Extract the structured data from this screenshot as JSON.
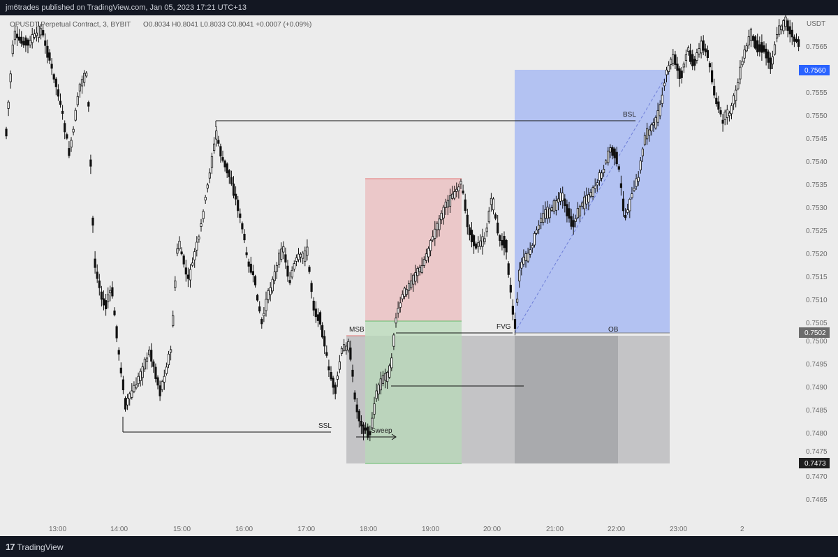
{
  "header": {
    "published_by": "jm6trades published on TradingView.com, Jan 05, 2023 17:21 UTC+13"
  },
  "symbol_info": {
    "title": "OPUSDT Perpetual Contract, 3, BYBIT",
    "ohlc_line": "O0.8034  H0.8041  L0.8033  C0.8041  +0.0007 (+0.09%)"
  },
  "axis": {
    "currency": "USDT",
    "y_ticks": [
      "0.7565",
      "0.7555",
      "0.7550",
      "0.7545",
      "0.7540",
      "0.7535",
      "0.7530",
      "0.7525",
      "0.7520",
      "0.7515",
      "0.7510",
      "0.7505",
      "0.7500",
      "0.7495",
      "0.7490",
      "0.7485",
      "0.7480",
      "0.7475",
      "0.7470",
      "0.7465"
    ],
    "x_ticks": [
      "13:00",
      "14:00",
      "15:00",
      "16:00",
      "17:00",
      "18:00",
      "19:00",
      "20:00",
      "21:00",
      "22:00",
      "23:00",
      "2"
    ]
  },
  "price_labels": {
    "target": "0.7560",
    "entry": "0.7502",
    "low": "0.7473"
  },
  "annotations": {
    "bsl": "BSL",
    "ssl": "SSL",
    "msb": "MSB",
    "fvg": "FVG",
    "ob": "OB",
    "sweep": "Sweep"
  },
  "colors": {
    "background": "#ececec",
    "candle": "#111111",
    "profit_zone": "#b3c2f2",
    "loss_zone": "#ebc8c9",
    "green_zone": "#b8d9b8",
    "gray_zone": "#c4c4c6",
    "dark_gray_zone": "#a9aaad",
    "target_tag": "#2962ff",
    "tag_dark": "#1f1f1f"
  },
  "footer": {
    "brand": "TradingView",
    "mark": "17"
  }
}
